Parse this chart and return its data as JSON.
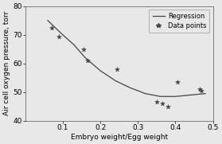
{
  "scatter_x": [
    0.07,
    0.09,
    0.155,
    0.165,
    0.245,
    0.35,
    0.365,
    0.38,
    0.405,
    0.465,
    0.47
  ],
  "scatter_y": [
    72.5,
    69.5,
    65.0,
    61.0,
    58.0,
    46.5,
    46.0,
    45.0,
    53.5,
    51.0,
    50.5
  ],
  "reg_x": [
    0.06,
    0.08,
    0.1,
    0.13,
    0.16,
    0.2,
    0.24,
    0.28,
    0.32,
    0.36,
    0.4,
    0.44,
    0.48
  ],
  "reg_y": [
    75.0,
    72.5,
    70.0,
    66.5,
    62.0,
    57.5,
    54.0,
    51.5,
    49.5,
    48.5,
    48.5,
    49.0,
    49.5
  ],
  "xlabel": "Embryo weight/Egg weight",
  "ylabel": "Air cell oxygen pressure, torr",
  "xlim": [
    0,
    0.5
  ],
  "ylim": [
    40,
    80
  ],
  "xticks": [
    0.1,
    0.2,
    0.3,
    0.4,
    0.5
  ],
  "yticks": [
    40,
    50,
    60,
    70,
    80
  ],
  "legend_regression": "Regression",
  "legend_data": "Data points",
  "line_color": "#444444",
  "scatter_color": "#444444",
  "bg_color": "#e8e8e8",
  "plot_bg_color": "#e8e8e8",
  "font_size": 6.5,
  "legend_fontsize": 6.0
}
